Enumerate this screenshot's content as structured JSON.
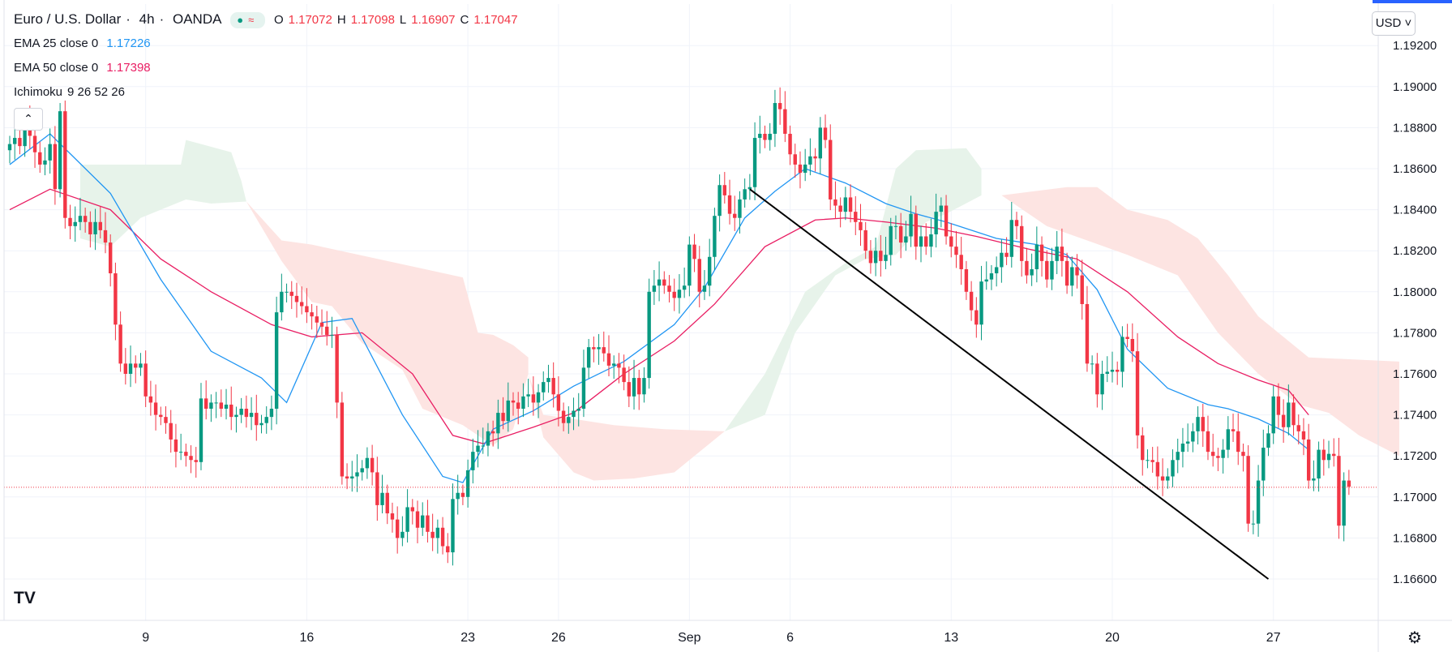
{
  "header": {
    "symbol": "Euro / U.S. Dollar",
    "interval": "4h",
    "exchange": "OANDA",
    "ohlc": {
      "o_label": "O",
      "o": "1.17072",
      "h_label": "H",
      "h": "1.17098",
      "l_label": "L",
      "l": "1.16907",
      "c_label": "C",
      "c": "1.17047"
    }
  },
  "indicators": {
    "ema25": {
      "label": "EMA 25 close 0",
      "value": "1.17226",
      "color": "#2196f3"
    },
    "ema50": {
      "label": "EMA 50 close 0",
      "value": "1.17398",
      "color": "#e91e63"
    },
    "ichimoku": {
      "label": "Ichimoku",
      "params": "9 26 52 26"
    }
  },
  "toolbar": {
    "currency": "USD",
    "collapse_icon": "chevron-up-icon",
    "settings_icon": "gear-icon",
    "logo": "tradingview-logo"
  },
  "colors": {
    "up": "#089981",
    "down": "#f23645",
    "cloud_bull": "#e7f3ea",
    "cloud_bear": "#fde4e2",
    "trendline": "#000000"
  },
  "chart_data": {
    "type": "candlestick",
    "title": "Euro / U.S. Dollar · 4h · OANDA",
    "ylim": [
      1.1645,
      1.1932
    ],
    "xlim": [
      0,
      276
    ],
    "y_ticks": [
      "1.19200",
      "1.19000",
      "1.18800",
      "1.18600",
      "1.18400",
      "1.18200",
      "1.18000",
      "1.17800",
      "1.17600",
      "1.17400",
      "1.17200",
      "1.17000",
      "1.16800",
      "1.16600"
    ],
    "x_ticks": [
      {
        "label": "9",
        "x": 27
      },
      {
        "label": "16",
        "x": 59
      },
      {
        "label": "23",
        "x": 91
      },
      {
        "label": "26",
        "x": 109
      },
      {
        "label": "Sep",
        "x": 135
      },
      {
        "label": "6",
        "x": 155
      },
      {
        "label": "13",
        "x": 187
      },
      {
        "label": "20",
        "x": 219
      },
      {
        "label": "27",
        "x": 251
      }
    ],
    "last_price": 1.17047,
    "closes": [
      1.1872,
      1.1875,
      1.1871,
      1.1882,
      1.1876,
      1.1868,
      1.1862,
      1.1864,
      1.1872,
      1.185,
      1.1888,
      1.1836,
      1.1832,
      1.1834,
      1.1837,
      1.1834,
      1.1828,
      1.1834,
      1.183,
      1.1824,
      1.1809,
      1.1784,
      1.1765,
      1.176,
      1.1765,
      1.1763,
      1.1765,
      1.1749,
      1.1746,
      1.174,
      1.1739,
      1.1736,
      1.1728,
      1.1722,
      1.1722,
      1.172,
      1.1718,
      1.1717,
      1.1748,
      1.1743,
      1.1746,
      1.1746,
      1.1743,
      1.1745,
      1.1739,
      1.174,
      1.1743,
      1.1739,
      1.1741,
      1.1735,
      1.1736,
      1.1739,
      1.1743,
      1.179,
      1.18,
      1.18,
      1.1798,
      1.1795,
      1.1793,
      1.179,
      1.1788,
      1.1785,
      1.1783,
      1.1779,
      1.1779,
      1.1746,
      1.171,
      1.1709,
      1.171,
      1.1712,
      1.1714,
      1.1719,
      1.1712,
      1.1696,
      1.1702,
      1.1692,
      1.1689,
      1.168,
      1.1683,
      1.1695,
      1.1693,
      1.1685,
      1.1691,
      1.1683,
      1.168,
      1.1685,
      1.1676,
      1.1673,
      1.1699,
      1.1702,
      1.17,
      1.1713,
      1.1722,
      1.1725,
      1.1725,
      1.1732,
      1.1731,
      1.1741,
      1.1737,
      1.1747,
      1.1746,
      1.1743,
      1.1749,
      1.175,
      1.1746,
      1.1751,
      1.1756,
      1.1758,
      1.175,
      1.1742,
      1.1736,
      1.1739,
      1.1742,
      1.1743,
      1.1763,
      1.1773,
      1.1772,
      1.1773,
      1.177,
      1.1764,
      1.1765,
      1.1763,
      1.1756,
      1.1749,
      1.1758,
      1.175,
      1.1758,
      1.18,
      1.1803,
      1.1806,
      1.1803,
      1.18,
      1.1797,
      1.1801,
      1.1803,
      1.1823,
      1.1816,
      1.18,
      1.1803,
      1.1817,
      1.1837,
      1.1852,
      1.1847,
      1.1838,
      1.1836,
      1.1845,
      1.185,
      1.1851,
      1.1875,
      1.1877,
      1.1874,
      1.1877,
      1.1892,
      1.1889,
      1.1877,
      1.1867,
      1.1862,
      1.1858,
      1.1862,
      1.1866,
      1.1865,
      1.188,
      1.1874,
      1.1845,
      1.1842,
      1.1839,
      1.1846,
      1.1839,
      1.1834,
      1.183,
      1.182,
      1.1814,
      1.182,
      1.1815,
      1.1818,
      1.1832,
      1.1832,
      1.1824,
      1.1827,
      1.1838,
      1.1822,
      1.1827,
      1.1822,
      1.1828,
      1.1839,
      1.1842,
      1.1827,
      1.1822,
      1.1818,
      1.1811,
      1.18,
      1.1791,
      1.1784,
      1.1805,
      1.1806,
      1.1809,
      1.1812,
      1.1819,
      1.1817,
      1.1835,
      1.1832,
      1.1815,
      1.1808,
      1.1811,
      1.1823,
      1.1815,
      1.1806,
      1.1815,
      1.1822,
      1.1815,
      1.1803,
      1.1812,
      1.1808,
      1.1794,
      1.1765,
      1.1765,
      1.175,
      1.176,
      1.1761,
      1.1762,
      1.1761,
      1.1778,
      1.1777,
      1.1771,
      1.173,
      1.1718,
      1.1718,
      1.1717,
      1.171,
      1.1708,
      1.171,
      1.1718,
      1.1722,
      1.1726,
      1.1727,
      1.1732,
      1.1739,
      1.1732,
      1.1722,
      1.172,
      1.1719,
      1.1723,
      1.1733,
      1.1732,
      1.1722,
      1.172,
      1.1687,
      1.1687,
      1.1708,
      1.1724,
      1.1731,
      1.1749,
      1.174,
      1.1734,
      1.1746,
      1.1735,
      1.1732,
      1.1728,
      1.1708,
      1.1709,
      1.1723,
      1.1718,
      1.1721,
      1.172,
      1.1686,
      1.1708,
      1.1705
    ],
    "ema25": [
      [
        0,
        1.1862
      ],
      [
        8,
        1.1877
      ],
      [
        20,
        1.1848
      ],
      [
        30,
        1.1806
      ],
      [
        40,
        1.1771
      ],
      [
        50,
        1.1758
      ],
      [
        55,
        1.1746
      ],
      [
        62,
        1.1785
      ],
      [
        68,
        1.1787
      ],
      [
        78,
        1.174
      ],
      [
        86,
        1.171
      ],
      [
        90,
        1.1707
      ],
      [
        96,
        1.1733
      ],
      [
        104,
        1.1742
      ],
      [
        112,
        1.1754
      ],
      [
        122,
        1.1766
      ],
      [
        132,
        1.1784
      ],
      [
        138,
        1.1802
      ],
      [
        146,
        1.1836
      ],
      [
        152,
        1.1849
      ],
      [
        158,
        1.186
      ],
      [
        166,
        1.1853
      ],
      [
        174,
        1.1843
      ],
      [
        180,
        1.1838
      ],
      [
        186,
        1.1834
      ],
      [
        196,
        1.1826
      ],
      [
        204,
        1.1823
      ],
      [
        210,
        1.1818
      ],
      [
        216,
        1.1801
      ],
      [
        222,
        1.1772
      ],
      [
        230,
        1.1753
      ],
      [
        238,
        1.1745
      ],
      [
        242,
        1.1743
      ],
      [
        248,
        1.1738
      ],
      [
        254,
        1.1731
      ],
      [
        258,
        1.1723
      ]
    ],
    "ema50": [
      [
        0,
        1.184
      ],
      [
        8,
        1.185
      ],
      [
        20,
        1.184
      ],
      [
        30,
        1.1816
      ],
      [
        40,
        1.18
      ],
      [
        52,
        1.1784
      ],
      [
        60,
        1.1778
      ],
      [
        70,
        1.178
      ],
      [
        80,
        1.176
      ],
      [
        88,
        1.173
      ],
      [
        94,
        1.1726
      ],
      [
        104,
        1.1734
      ],
      [
        112,
        1.1741
      ],
      [
        122,
        1.176
      ],
      [
        132,
        1.1776
      ],
      [
        140,
        1.1794
      ],
      [
        150,
        1.1822
      ],
      [
        160,
        1.1835
      ],
      [
        166,
        1.1836
      ],
      [
        174,
        1.1834
      ],
      [
        184,
        1.1831
      ],
      [
        192,
        1.1827
      ],
      [
        202,
        1.1821
      ],
      [
        212,
        1.1816
      ],
      [
        222,
        1.18
      ],
      [
        232,
        1.1778
      ],
      [
        240,
        1.1765
      ],
      [
        248,
        1.1757
      ],
      [
        254,
        1.1752
      ],
      [
        258,
        1.174
      ]
    ],
    "cloud_segments": [
      {
        "kind": "bull",
        "x0": 14,
        "x1": 47,
        "top": [
          [
            14,
            1.1862
          ],
          [
            34,
            1.1862
          ],
          [
            35,
            1.1874
          ],
          [
            44,
            1.1868
          ],
          [
            46,
            1.1854
          ],
          [
            47,
            1.1844
          ]
        ],
        "bottom": [
          [
            14,
            1.1826
          ],
          [
            20,
            1.1822
          ],
          [
            26,
            1.1836
          ],
          [
            35,
            1.1845
          ],
          [
            40,
            1.1843
          ],
          [
            47,
            1.1844
          ]
        ]
      },
      {
        "kind": "bear",
        "x0": 47,
        "x1": 103,
        "top": [
          [
            47,
            1.1844
          ],
          [
            54,
            1.1825
          ],
          [
            60,
            1.1823
          ],
          [
            90,
            1.1807
          ],
          [
            93,
            1.178
          ],
          [
            96,
            1.1779
          ],
          [
            100,
            1.1774
          ],
          [
            103,
            1.1768
          ]
        ],
        "bottom": [
          [
            47,
            1.1844
          ],
          [
            54,
            1.1815
          ],
          [
            60,
            1.1795
          ],
          [
            64,
            1.1793
          ],
          [
            70,
            1.1775
          ],
          [
            78,
            1.1762
          ],
          [
            82,
            1.1743
          ],
          [
            90,
            1.1735
          ],
          [
            96,
            1.1725
          ],
          [
            100,
            1.1733
          ],
          [
            103,
            1.176
          ]
        ]
      },
      {
        "kind": "bear",
        "x0": 103,
        "x1": 142,
        "top": [
          [
            103,
            1.176
          ],
          [
            106,
            1.174
          ],
          [
            112,
            1.1738
          ],
          [
            120,
            1.1735
          ],
          [
            130,
            1.1733
          ],
          [
            142,
            1.1732
          ]
        ],
        "bottom": [
          [
            103,
            1.176
          ],
          [
            106,
            1.1729
          ],
          [
            112,
            1.1712
          ],
          [
            116,
            1.1708
          ],
          [
            124,
            1.1709
          ],
          [
            132,
            1.1712
          ],
          [
            142,
            1.1732
          ]
        ]
      },
      {
        "kind": "bull",
        "x0": 142,
        "x1": 193,
        "top": [
          [
            142,
            1.1732
          ],
          [
            150,
            1.176
          ],
          [
            158,
            1.18
          ],
          [
            166,
            1.1814
          ],
          [
            172,
            1.1822
          ],
          [
            176,
            1.186
          ],
          [
            180,
            1.1869
          ],
          [
            190,
            1.187
          ],
          [
            193,
            1.186
          ]
        ],
        "bottom": [
          [
            142,
            1.1732
          ],
          [
            150,
            1.174
          ],
          [
            156,
            1.178
          ],
          [
            164,
            1.1808
          ],
          [
            170,
            1.1816
          ],
          [
            176,
            1.1818
          ],
          [
            182,
            1.1834
          ],
          [
            186,
            1.1838
          ],
          [
            193,
            1.1847
          ]
        ]
      },
      {
        "kind": "bear",
        "x0": 197,
        "x1": 276,
        "top": [
          [
            197,
            1.1847
          ],
          [
            210,
            1.1851
          ],
          [
            216,
            1.1851
          ],
          [
            222,
            1.184
          ],
          [
            230,
            1.1835
          ],
          [
            236,
            1.1826
          ],
          [
            242,
            1.1808
          ],
          [
            248,
            1.1788
          ],
          [
            254,
            1.1776
          ],
          [
            258,
            1.1768
          ],
          [
            276,
            1.1766
          ]
        ],
        "bottom": [
          [
            197,
            1.1847
          ],
          [
            206,
            1.1832
          ],
          [
            214,
            1.1825
          ],
          [
            222,
            1.1818
          ],
          [
            232,
            1.1808
          ],
          [
            240,
            1.178
          ],
          [
            248,
            1.176
          ],
          [
            256,
            1.1745
          ],
          [
            262,
            1.1741
          ],
          [
            268,
            1.173
          ],
          [
            276,
            1.172
          ]
        ]
      }
    ],
    "trendline": [
      [
        147,
        1.185
      ],
      [
        250,
        1.166
      ]
    ]
  }
}
